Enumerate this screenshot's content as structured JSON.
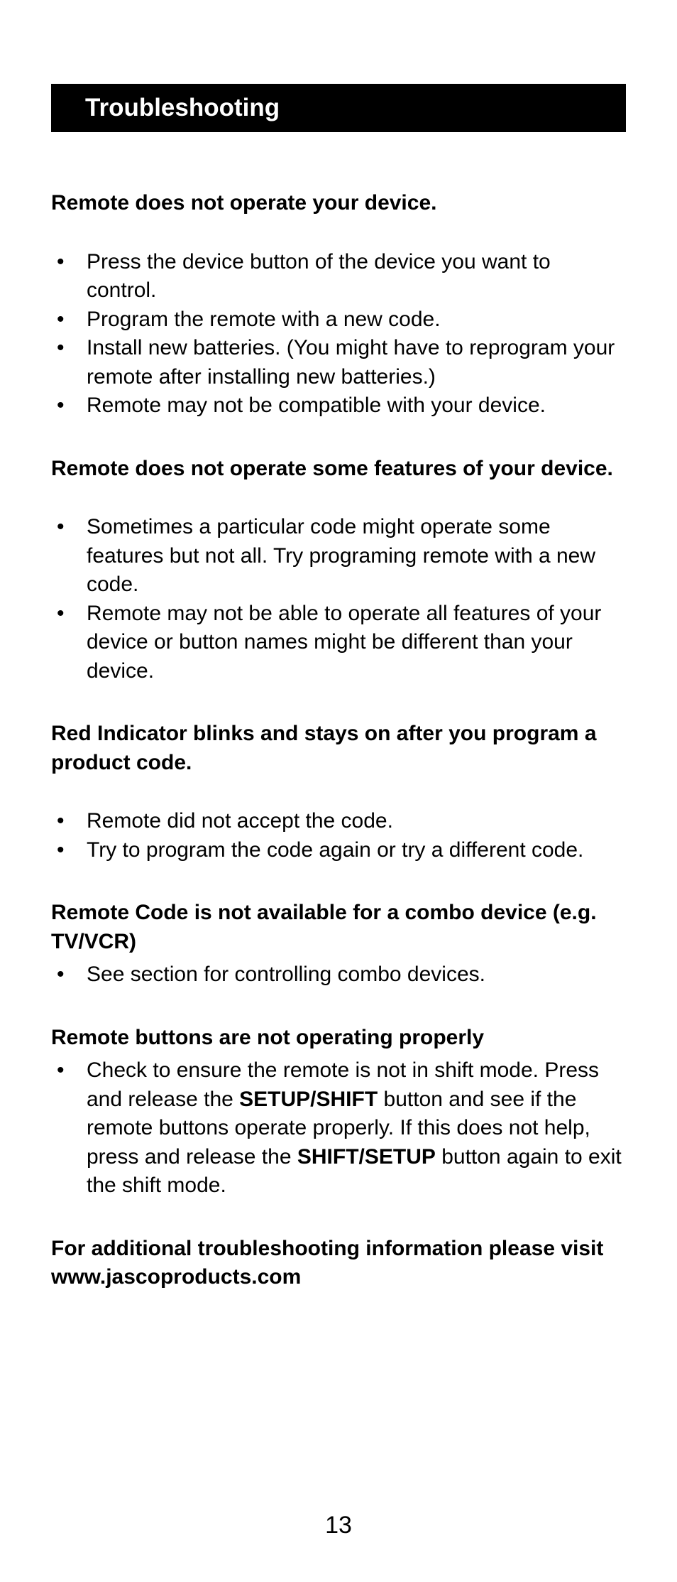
{
  "title": "Troubleshooting",
  "sections": [
    {
      "heading": "Remote does not operate your device.",
      "bullets": [
        "Press the device button of the device you want to control.",
        "Program the remote with a new code.",
        "Install new batteries. (You might have to reprogram your remote after installing new batteries.)",
        "Remote may not be compatible with your device."
      ]
    },
    {
      "heading": "Remote does not operate some features of  your device.",
      "bullets": [
        "Sometimes a particular code might operate some features but not all. Try programing remote with a new code.",
        "Remote may not be able to operate all features of your device or button names might be different than your device."
      ]
    },
    {
      "heading": "Red Indicator blinks and stays on after you program a product code.",
      "bullets": [
        "Remote did not accept the code.",
        "Try to program the code again or try a different code."
      ]
    },
    {
      "heading": "Remote Code is not available for a combo device (e.g. TV/VCR)",
      "bullets": [
        "See section for controlling combo devices."
      ]
    },
    {
      "heading": "Remote buttons are not operating properly",
      "bullets_rich": {
        "pre": "Check to ensure the remote is not in shift mode. Press and release the ",
        "b1": "SETUP/SHIFT",
        "mid": " button and see if the remote buttons operate properly. If this does not help, press and release the ",
        "b2": "SHIFT/SETUP",
        "post": " button again to exit the shift mode."
      }
    }
  ],
  "footer": "For additional troubleshooting information please visit www.jascoproducts.com",
  "page_number": "13"
}
